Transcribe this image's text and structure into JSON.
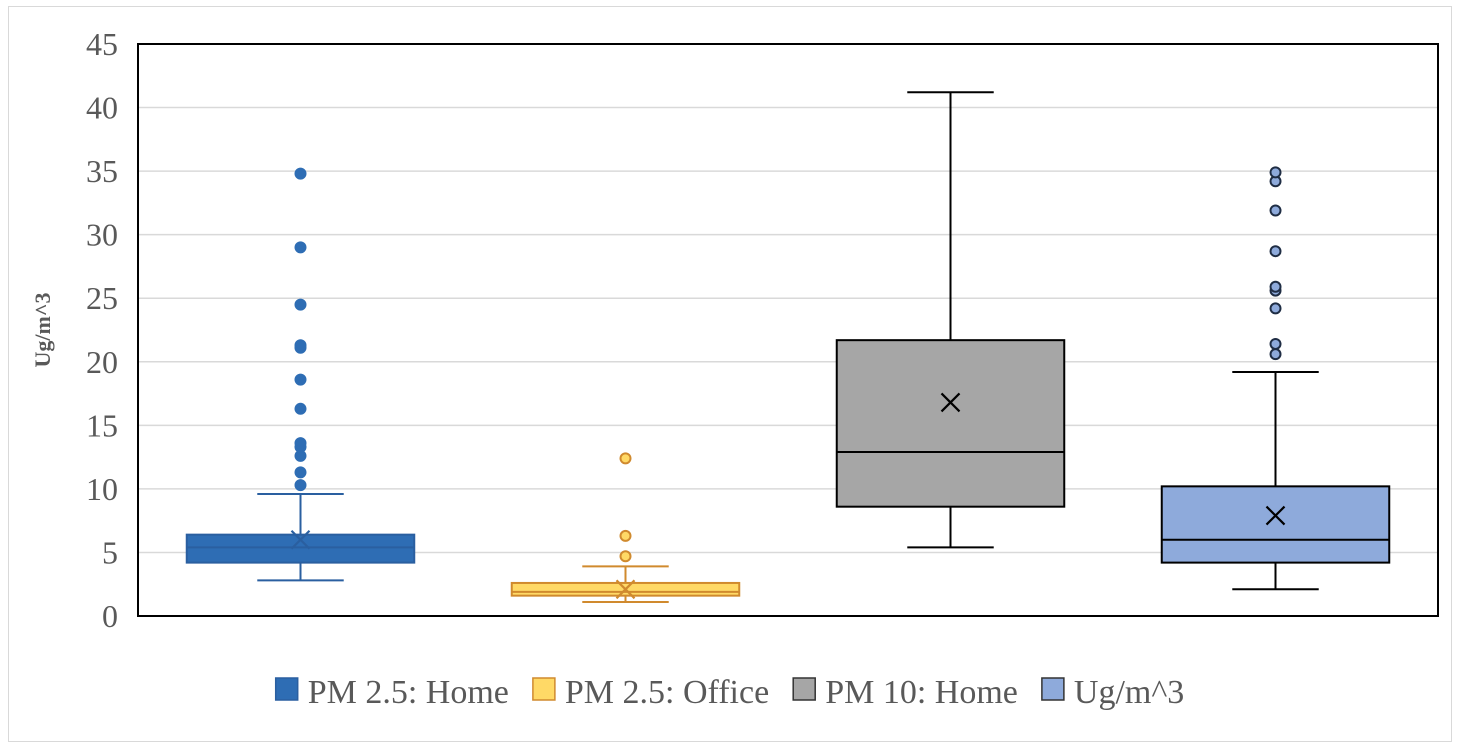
{
  "chart_data": {
    "type": "box",
    "title": "",
    "xlabel": "",
    "ylabel": "Ug/m^3",
    "ylim": [
      0,
      45
    ],
    "yticks": [
      0,
      5,
      10,
      15,
      20,
      25,
      30,
      35,
      40,
      45
    ],
    "grid": true,
    "legend_position": "bottom",
    "series": [
      {
        "name": "PM 2.5: Home",
        "fill": "#2e6db4",
        "stroke": "#2a5fa0",
        "median_color": "#2a5fa0",
        "mean_marker_color": "#2a5fa0",
        "whisker_min": 2.8,
        "q1": 4.2,
        "median": 5.4,
        "q3": 6.4,
        "whisker_max": 9.6,
        "mean": 6.0,
        "outliers": [
          10.3,
          11.3,
          12.6,
          13.3,
          13.6,
          16.3,
          18.6,
          21.1,
          21.3,
          24.5,
          29.0,
          34.8
        ],
        "outlier_fill": "#2e6db4",
        "outlier_stroke": "#2e6db4"
      },
      {
        "name": "PM 2.5: Office",
        "fill": "#ffd966",
        "stroke": "#d08a2e",
        "median_color": "#d08a2e",
        "mean_marker_color": "#d08a2e",
        "whisker_min": 1.1,
        "q1": 1.6,
        "median": 1.9,
        "q3": 2.6,
        "whisker_max": 3.9,
        "mean": 2.1,
        "outliers": [
          4.7,
          6.3,
          12.4
        ],
        "outlier_fill": "#ffd966",
        "outlier_stroke": "#d08a2e"
      },
      {
        "name": "PM 10: Home",
        "fill": "#a6a6a6",
        "stroke": "#000000",
        "median_color": "#000000",
        "mean_marker_color": "#000000",
        "whisker_min": 5.4,
        "q1": 8.6,
        "median": 12.9,
        "q3": 21.7,
        "whisker_max": 41.2,
        "mean": 16.8,
        "outliers": [],
        "outlier_fill": "#a6a6a6",
        "outlier_stroke": "#000000"
      },
      {
        "name": "Ug/m^3",
        "fill": "#8eaadb",
        "stroke": "#000000",
        "median_color": "#000000",
        "mean_marker_color": "#000000",
        "whisker_min": 2.1,
        "q1": 4.2,
        "median": 6.0,
        "q3": 10.2,
        "whisker_max": 19.2,
        "mean": 7.9,
        "outliers": [
          20.6,
          21.4,
          24.2,
          25.6,
          25.9,
          28.7,
          31.9,
          34.2,
          34.9
        ],
        "outlier_fill": "#8eaadb",
        "outlier_stroke": "#1f2d44"
      }
    ]
  }
}
